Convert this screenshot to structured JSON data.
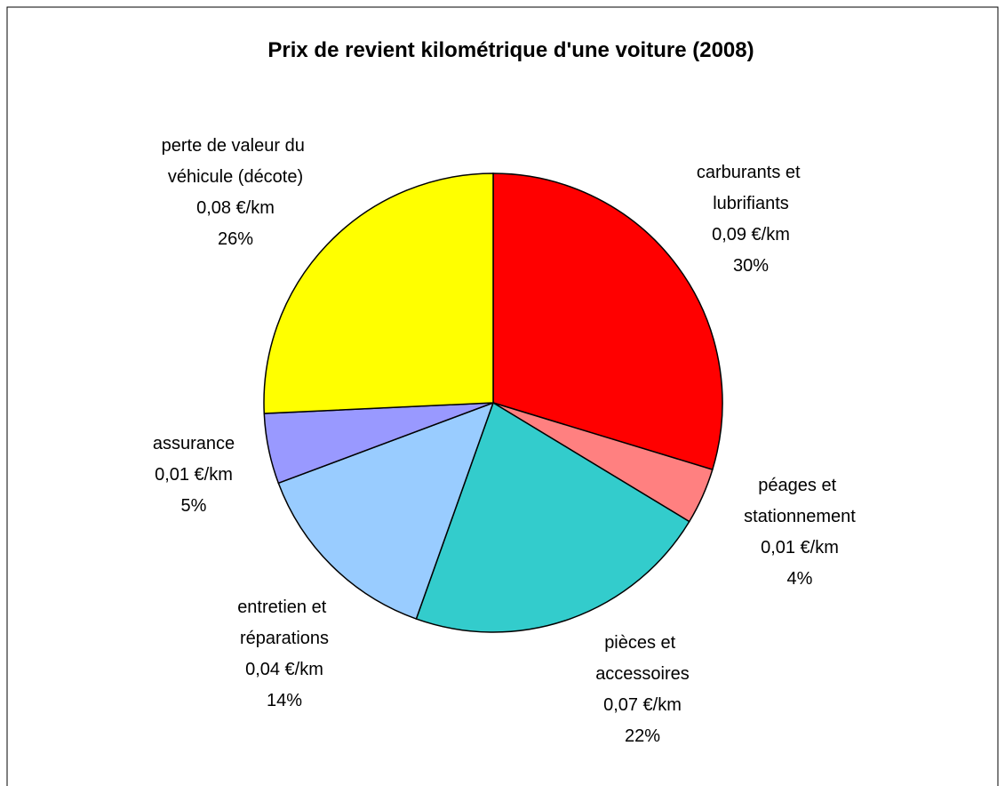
{
  "chart_data": {
    "type": "pie",
    "title": "Prix de revient kilométrique d'une voiture (2008)",
    "categories": [
      "carburants et lubrifiants",
      "péages et stationnement",
      "pièces et accessoires",
      "entretien et réparations",
      "assurance",
      "perte de valeur du véhicule (décote)"
    ],
    "values": [
      30,
      4,
      22,
      14,
      5,
      26
    ],
    "value_labels": [
      "30%",
      "4%",
      "22%",
      "14%",
      "5%",
      "26%"
    ],
    "cost_labels": [
      "0,09 €/km",
      "0,01 €/km",
      "0,07 €/km",
      "0,04 €/km",
      "0,01 €/km",
      "0,08 €/km"
    ],
    "colors": [
      "#ff0000",
      "#ff8080",
      "#33cccc",
      "#99ccff",
      "#9999ff",
      "#ffff00"
    ]
  }
}
